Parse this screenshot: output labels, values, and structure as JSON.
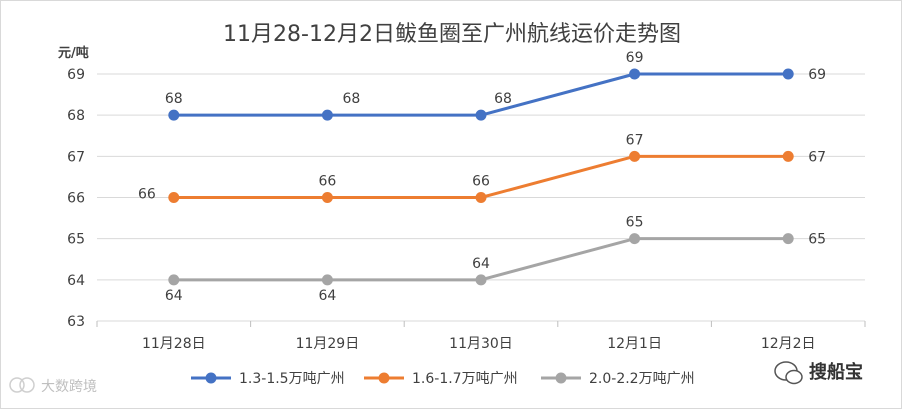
{
  "chart_data": {
    "type": "line",
    "title": "11月28-12月2日鲅鱼圈至广州航线运价走势图",
    "unit_label": "元/吨",
    "categories": [
      "11月28日",
      "11月29日",
      "11月30日",
      "12月1日",
      "12月2日"
    ],
    "ylim": [
      63,
      69
    ],
    "yticks": [
      63,
      64,
      65,
      66,
      67,
      68,
      69
    ],
    "grid": true,
    "legend_position": "bottom",
    "series": [
      {
        "name": "1.3-1.5万吨广州",
        "color": "#4472c4",
        "values": [
          68,
          68,
          68,
          69,
          69
        ]
      },
      {
        "name": "1.6-1.7万吨广州",
        "color": "#ed7d31",
        "values": [
          66,
          66,
          66,
          67,
          67
        ]
      },
      {
        "name": "2.0-2.2万吨广州",
        "color": "#a5a5a5",
        "values": [
          64,
          64,
          64,
          65,
          65
        ]
      }
    ]
  },
  "watermark": {
    "left_text": "大数跨境",
    "right_text": "搜船宝"
  }
}
